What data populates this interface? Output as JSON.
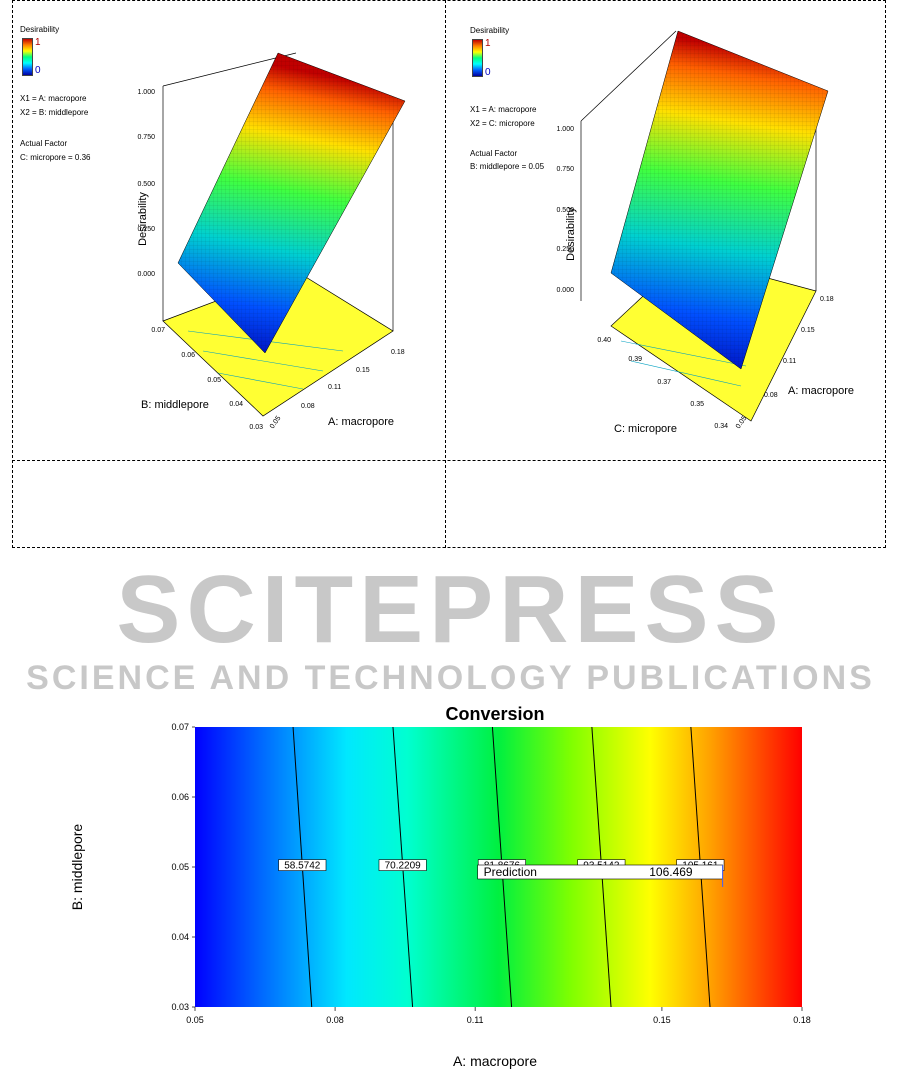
{
  "watermark": {
    "main": "SCITEPRESS",
    "sub": "SCIENCE AND TECHNOLOGY PUBLICATIONS"
  },
  "chart_data": [
    {
      "type": "surface3d",
      "legend_title": "Desirability",
      "legend_max": "1",
      "legend_min": "0",
      "x1": "X1 = A: macropore",
      "x2": "X2 = B: middlepore",
      "actual_factor_title": "Actual Factor",
      "actual_factor": "C: micropore = 0.36",
      "zlabel": "Desirability",
      "xlabel": "A: macropore",
      "ylabel": "B: middlepore",
      "z_ticks": [
        "1.000",
        "0.750",
        "0.500",
        "0.250",
        "0.000"
      ],
      "x_ticks": [
        "0.05",
        "0.08",
        "0.11",
        "0.15",
        "0.18"
      ],
      "y_ticks": [
        "0.03",
        "0.04",
        "0.05",
        "0.06",
        "0.07"
      ]
    },
    {
      "type": "surface3d",
      "legend_title": "Desirability",
      "legend_max": "1",
      "legend_min": "0",
      "x1": "X1 = A: macropore",
      "x2": "X2 = C: micropore",
      "actual_factor_title": "Actual Factor",
      "actual_factor": "B: middlepore = 0.05",
      "zlabel": "Desirability",
      "xlabel": "A: macropore",
      "ylabel": "C: micropore",
      "z_ticks": [
        "1.000",
        "0.750",
        "0.500",
        "0.250",
        "0.000"
      ],
      "x_ticks": [
        "0.05",
        "0.08",
        "0.11",
        "0.15",
        "0.18"
      ],
      "y_ticks": [
        "0.34",
        "0.35",
        "0.37",
        "0.39",
        "0.40"
      ]
    },
    {
      "type": "heatmap",
      "title": "Conversion",
      "xlabel": "A: macropore",
      "ylabel": "B: middlepore",
      "xlim": [
        0.05,
        0.18
      ],
      "ylim": [
        0.03,
        0.07
      ],
      "x_ticks": [
        "0.05",
        "0.08",
        "0.11",
        "0.15",
        "0.18"
      ],
      "y_ticks": [
        "0.03",
        "0.04",
        "0.05",
        "0.06",
        "0.07"
      ],
      "contours": [
        {
          "label": "58.5742",
          "x_top": 0.071,
          "x_bottom": 0.075
        },
        {
          "label": "70.2209",
          "x_top": 0.0924,
          "x_bottom": 0.0966
        },
        {
          "label": "81.8676",
          "x_top": 0.1137,
          "x_bottom": 0.1178
        },
        {
          "label": "93.5142",
          "x_top": 0.135,
          "x_bottom": 0.1391
        },
        {
          "label": "105.161",
          "x_top": 0.1562,
          "x_bottom": 0.1603
        }
      ],
      "prediction_label": "Prediction",
      "prediction_value": "106.469",
      "prediction_point": {
        "x": 0.163,
        "y": 0.049
      }
    }
  ]
}
